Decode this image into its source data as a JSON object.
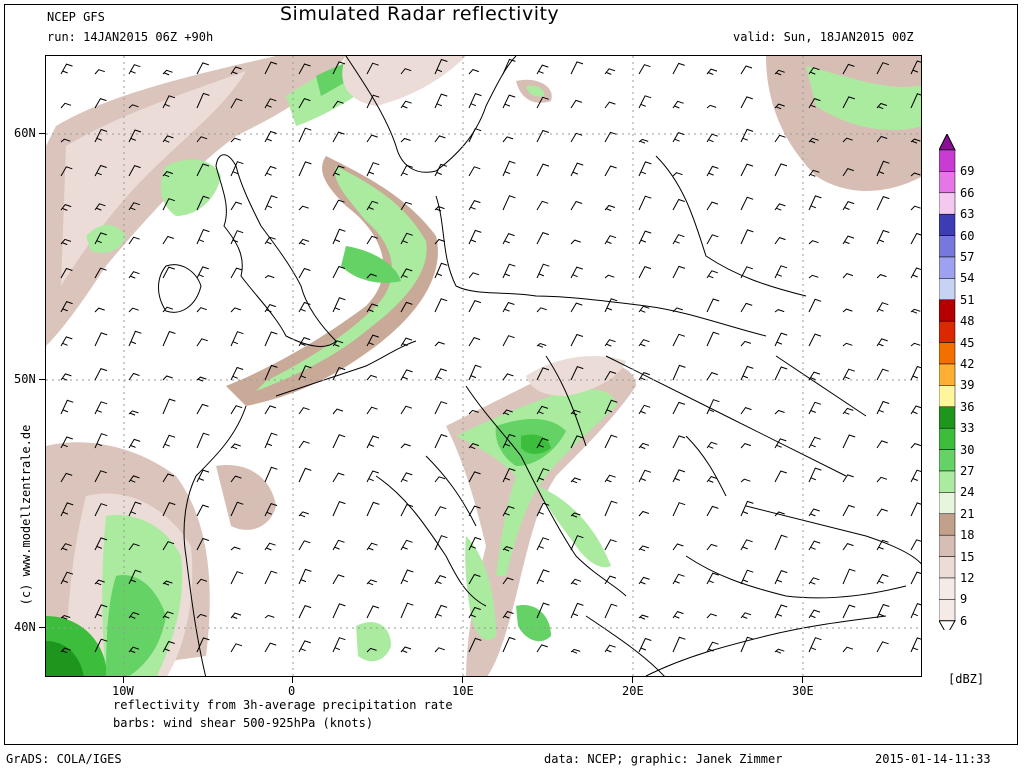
{
  "header": {
    "model": "NCEP GFS",
    "run": "run: 14JAN2015 06Z +90h",
    "title": "Simulated Radar reflectivity",
    "valid": "valid: Sun, 18JAN2015 00Z"
  },
  "axes": {
    "lat_labels": [
      "60N",
      "50N",
      "40N"
    ],
    "lon_labels": [
      "10W",
      "0",
      "10E",
      "20E",
      "30E"
    ]
  },
  "colorbar": {
    "unit": "[dBZ]",
    "levels": [
      "69",
      "66",
      "63",
      "60",
      "57",
      "54",
      "51",
      "48",
      "45",
      "42",
      "39",
      "36",
      "33",
      "30",
      "27",
      "24",
      "21",
      "18",
      "15",
      "12",
      "9",
      "6"
    ],
    "colors": [
      "#8a0f96",
      "#c83cd2",
      "#e676e6",
      "#f5c8f0",
      "#3c3cb4",
      "#7878dc",
      "#9ea0f0",
      "#c8d2f5",
      "#b40000",
      "#dc2800",
      "#f56e00",
      "#ffaf32",
      "#fff59b",
      "#1e961e",
      "#3cbe3c",
      "#64d264",
      "#aaeba0",
      "#e6f5dc",
      "#c3a08c",
      "#d7beb4",
      "#ebdcd7",
      "#f5ebe6"
    ]
  },
  "footer": {
    "line1": "reflectivity from 3h-average precipitation rate",
    "line2": "barbs: wind shear 500-925hPa (knots)",
    "grads": "GrADS: COLA/IGES",
    "credit": "data: NCEP; graphic: Janek Zimmer",
    "timestamp": "2015-01-14-11:33"
  },
  "watermark": "(c) www.modellzentrale.de"
}
